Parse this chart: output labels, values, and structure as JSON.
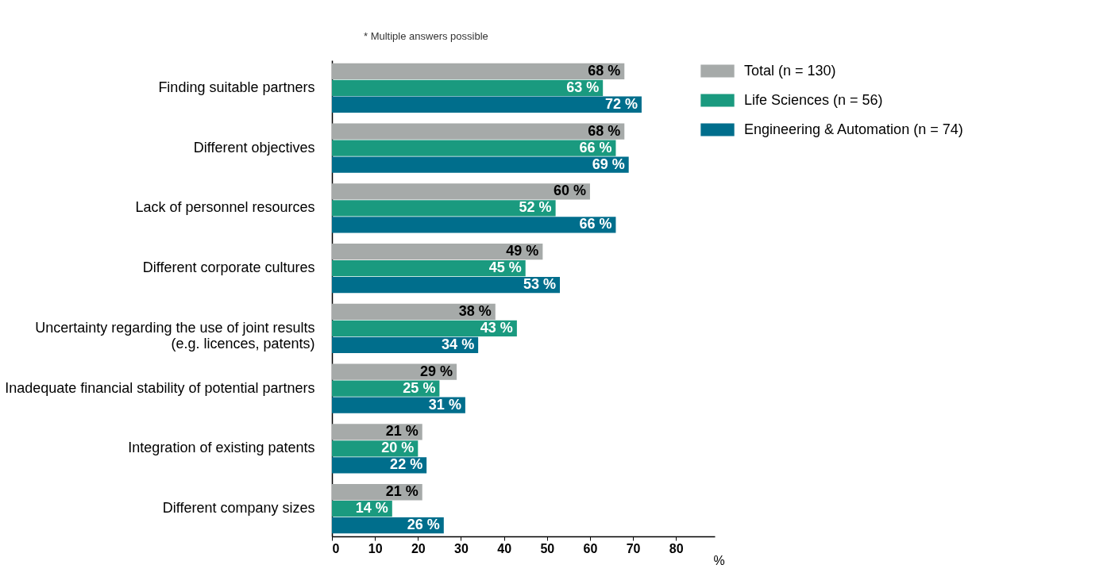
{
  "chart_data": {
    "type": "bar",
    "orientation": "horizontal",
    "categories": [
      "Finding suitable partners",
      "Different objectives",
      "Lack of personnel resources",
      "Different corporate cultures",
      "Uncertainty regarding the use of joint results\n(e.g. licences, patents)",
      "Inadequate financial stability of potential partners",
      "Integration of existing patents",
      "Different company sizes"
    ],
    "series": [
      {
        "name": "Total (n = 130)",
        "color": "#a6aaa9",
        "values": [
          68,
          68,
          60,
          49,
          38,
          29,
          21,
          21
        ],
        "value_labels": [
          "68 %",
          "68 %",
          "60 %",
          "49 %",
          "38 %",
          "29 %",
          "21 %",
          "21 %"
        ]
      },
      {
        "name": "Life Sciences (n = 56)",
        "color": "#1a9a7f",
        "values": [
          63,
          66,
          52,
          45,
          43,
          25,
          20,
          14
        ],
        "value_labels": [
          "63 %",
          "66 %",
          "52 %",
          "45 %",
          "43 %",
          "25 %",
          "20 %",
          "14 %"
        ]
      },
      {
        "name": "Engineering & Automation (n = 74)",
        "color": "#006e8c",
        "values": [
          72,
          69,
          66,
          53,
          34,
          31,
          22,
          26
        ],
        "value_labels": [
          "72 %",
          "69 %",
          "66 %",
          "53 %",
          "34 %",
          "31 %",
          "22 %",
          "26 %"
        ]
      }
    ],
    "xlim": [
      0,
      89
    ],
    "xticks": [
      0,
      10,
      20,
      30,
      40,
      50,
      60,
      70,
      80
    ],
    "xlabel": "%",
    "annotations": [
      "*    Multiple answers possible"
    ],
    "grid": false,
    "legend": "right"
  }
}
